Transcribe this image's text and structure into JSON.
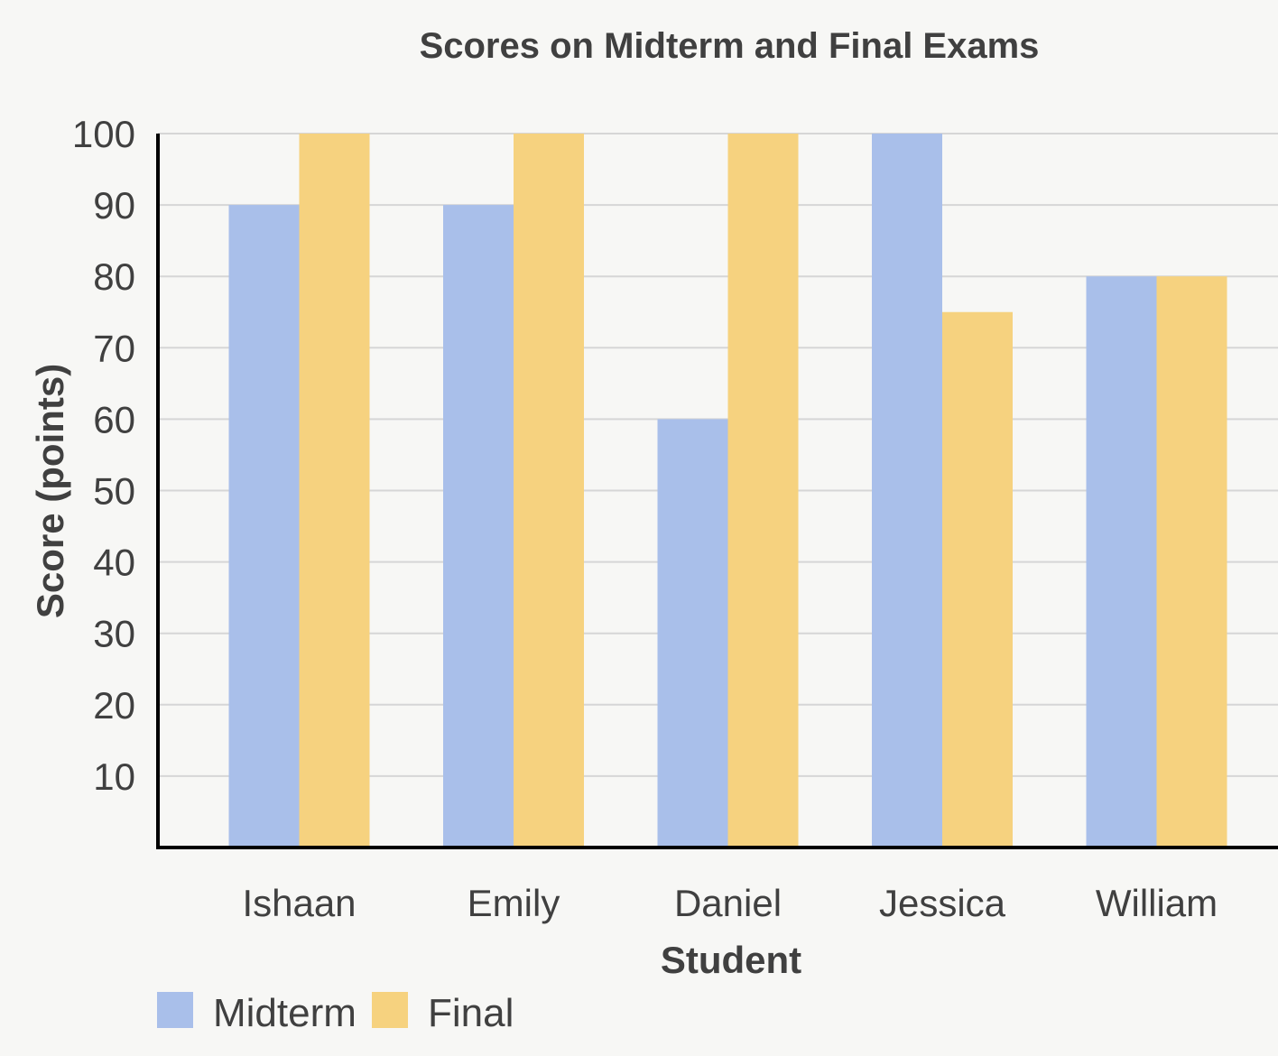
{
  "chart_data": {
    "type": "bar",
    "title": "Scores on Midterm and Final Exams",
    "xlabel": "Student",
    "ylabel": "Score (points)",
    "categories": [
      "Ishaan",
      "Emily",
      "Daniel",
      "Jessica",
      "William"
    ],
    "series": [
      {
        "name": "Midterm",
        "values": [
          90,
          90,
          60,
          100,
          80
        ],
        "color": "#a9bfea"
      },
      {
        "name": "Final",
        "values": [
          100,
          100,
          100,
          75,
          80
        ],
        "color": "#f6d27f"
      }
    ],
    "ylim": [
      0,
      100
    ],
    "yticks": [
      10,
      20,
      30,
      40,
      50,
      60,
      70,
      80,
      90,
      100
    ],
    "grid": true,
    "legend_position": "bottom-left"
  }
}
